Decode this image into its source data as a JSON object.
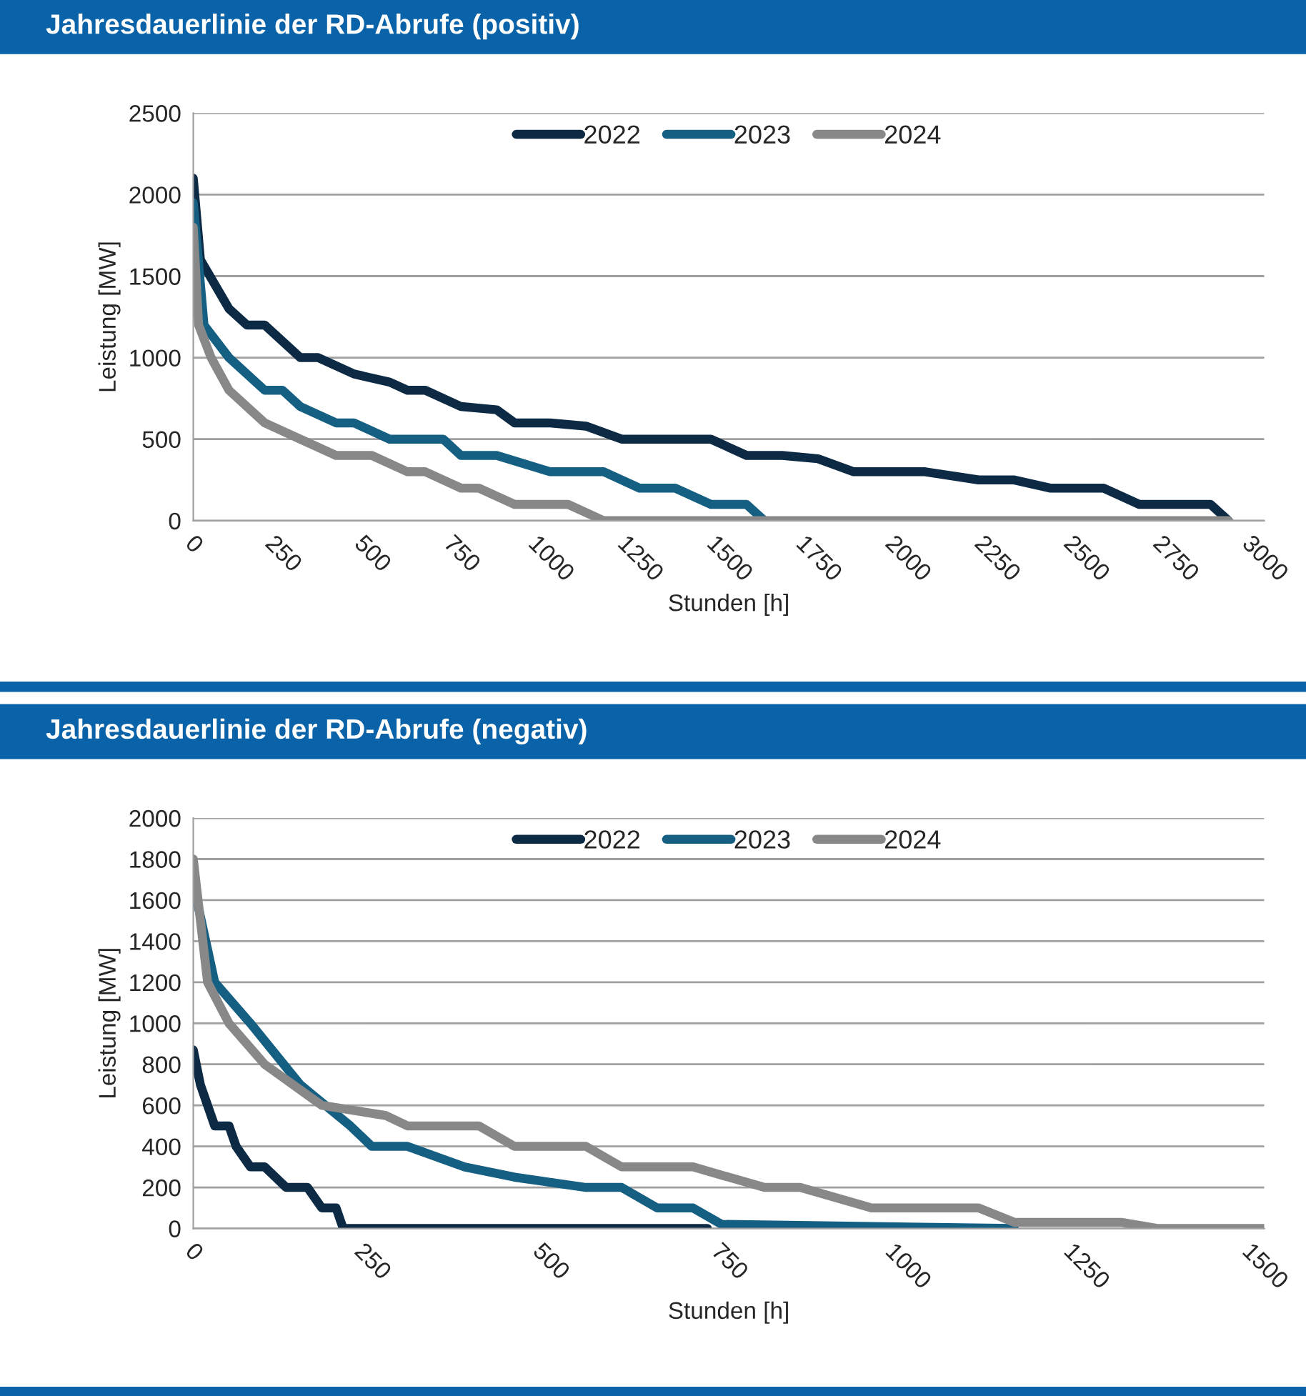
{
  "chart_data": [
    {
      "type": "line",
      "title": "Jahresdauerlinie der RD-Abrufe (positiv)",
      "xlabel": "Stunden [h]",
      "ylabel": "Leistung [MW]",
      "xlim": [
        0,
        3000
      ],
      "xticks": [
        0,
        250,
        500,
        750,
        1000,
        1250,
        1500,
        1750,
        2000,
        2250,
        2500,
        2750,
        3000
      ],
      "ylim": [
        0,
        2500
      ],
      "yticks": [
        0,
        500,
        1000,
        1500,
        2000,
        2500
      ],
      "grid": "y",
      "legend": "top",
      "series": [
        {
          "name": "2022",
          "color": "#0d2a45",
          "x": [
            0,
            20,
            100,
            150,
            200,
            300,
            350,
            450,
            550,
            600,
            650,
            750,
            850,
            900,
            1000,
            1100,
            1200,
            1450,
            1550,
            1650,
            1750,
            1850,
            2050,
            2200,
            2300,
            2400,
            2550,
            2650,
            2850,
            2900
          ],
          "values": [
            2100,
            1600,
            1300,
            1200,
            1200,
            1000,
            1000,
            900,
            850,
            800,
            800,
            700,
            680,
            600,
            600,
            580,
            500,
            500,
            400,
            400,
            380,
            300,
            300,
            250,
            250,
            200,
            200,
            100,
            100,
            0
          ]
        },
        {
          "name": "2023",
          "color": "#156082",
          "x": [
            0,
            30,
            100,
            200,
            250,
            300,
            400,
            450,
            550,
            700,
            750,
            850,
            1000,
            1150,
            1250,
            1350,
            1450,
            1550,
            1600
          ],
          "values": [
            1950,
            1200,
            1000,
            800,
            800,
            700,
            600,
            600,
            500,
            500,
            400,
            400,
            300,
            300,
            200,
            200,
            100,
            100,
            0
          ]
        },
        {
          "name": "2024",
          "color": "#888888",
          "x": [
            0,
            15,
            50,
            100,
            200,
            300,
            400,
            500,
            600,
            650,
            750,
            800,
            900,
            1050,
            1150,
            2900
          ],
          "values": [
            1800,
            1200,
            1000,
            800,
            600,
            500,
            400,
            400,
            300,
            300,
            200,
            200,
            100,
            100,
            0,
            0
          ]
        }
      ]
    },
    {
      "type": "line",
      "title": "Jahresdauerlinie der RD-Abrufe (negativ)",
      "xlabel": "Stunden [h]",
      "ylabel": "Leistung [MW]",
      "xlim": [
        0,
        1500
      ],
      "xticks": [
        0,
        250,
        500,
        750,
        1000,
        1250,
        1500
      ],
      "ylim": [
        0,
        2000
      ],
      "yticks": [
        0,
        200,
        400,
        600,
        800,
        1000,
        1200,
        1400,
        1600,
        1800,
        2000
      ],
      "grid": "y",
      "legend": "top",
      "series": [
        {
          "name": "2022",
          "color": "#0d2a45",
          "x": [
            0,
            10,
            30,
            50,
            60,
            80,
            100,
            130,
            160,
            180,
            200,
            210,
            720
          ],
          "values": [
            870,
            700,
            500,
            500,
            400,
            300,
            300,
            200,
            200,
            100,
            100,
            0,
            0
          ]
        },
        {
          "name": "2023",
          "color": "#156082",
          "x": [
            5,
            30,
            80,
            150,
            220,
            250,
            300,
            380,
            450,
            550,
            600,
            650,
            700,
            740,
            1150
          ],
          "values": [
            1600,
            1200,
            1000,
            700,
            500,
            400,
            400,
            300,
            250,
            200,
            200,
            100,
            100,
            20,
            0
          ]
        },
        {
          "name": "2024",
          "color": "#888888",
          "x": [
            0,
            20,
            50,
            100,
            180,
            270,
            300,
            400,
            450,
            550,
            600,
            700,
            800,
            850,
            950,
            1100,
            1150,
            1300,
            1350,
            1500
          ],
          "values": [
            1800,
            1200,
            1000,
            800,
            600,
            550,
            500,
            500,
            400,
            400,
            300,
            300,
            200,
            200,
            100,
            100,
            30,
            30,
            0,
            0
          ]
        }
      ]
    }
  ]
}
